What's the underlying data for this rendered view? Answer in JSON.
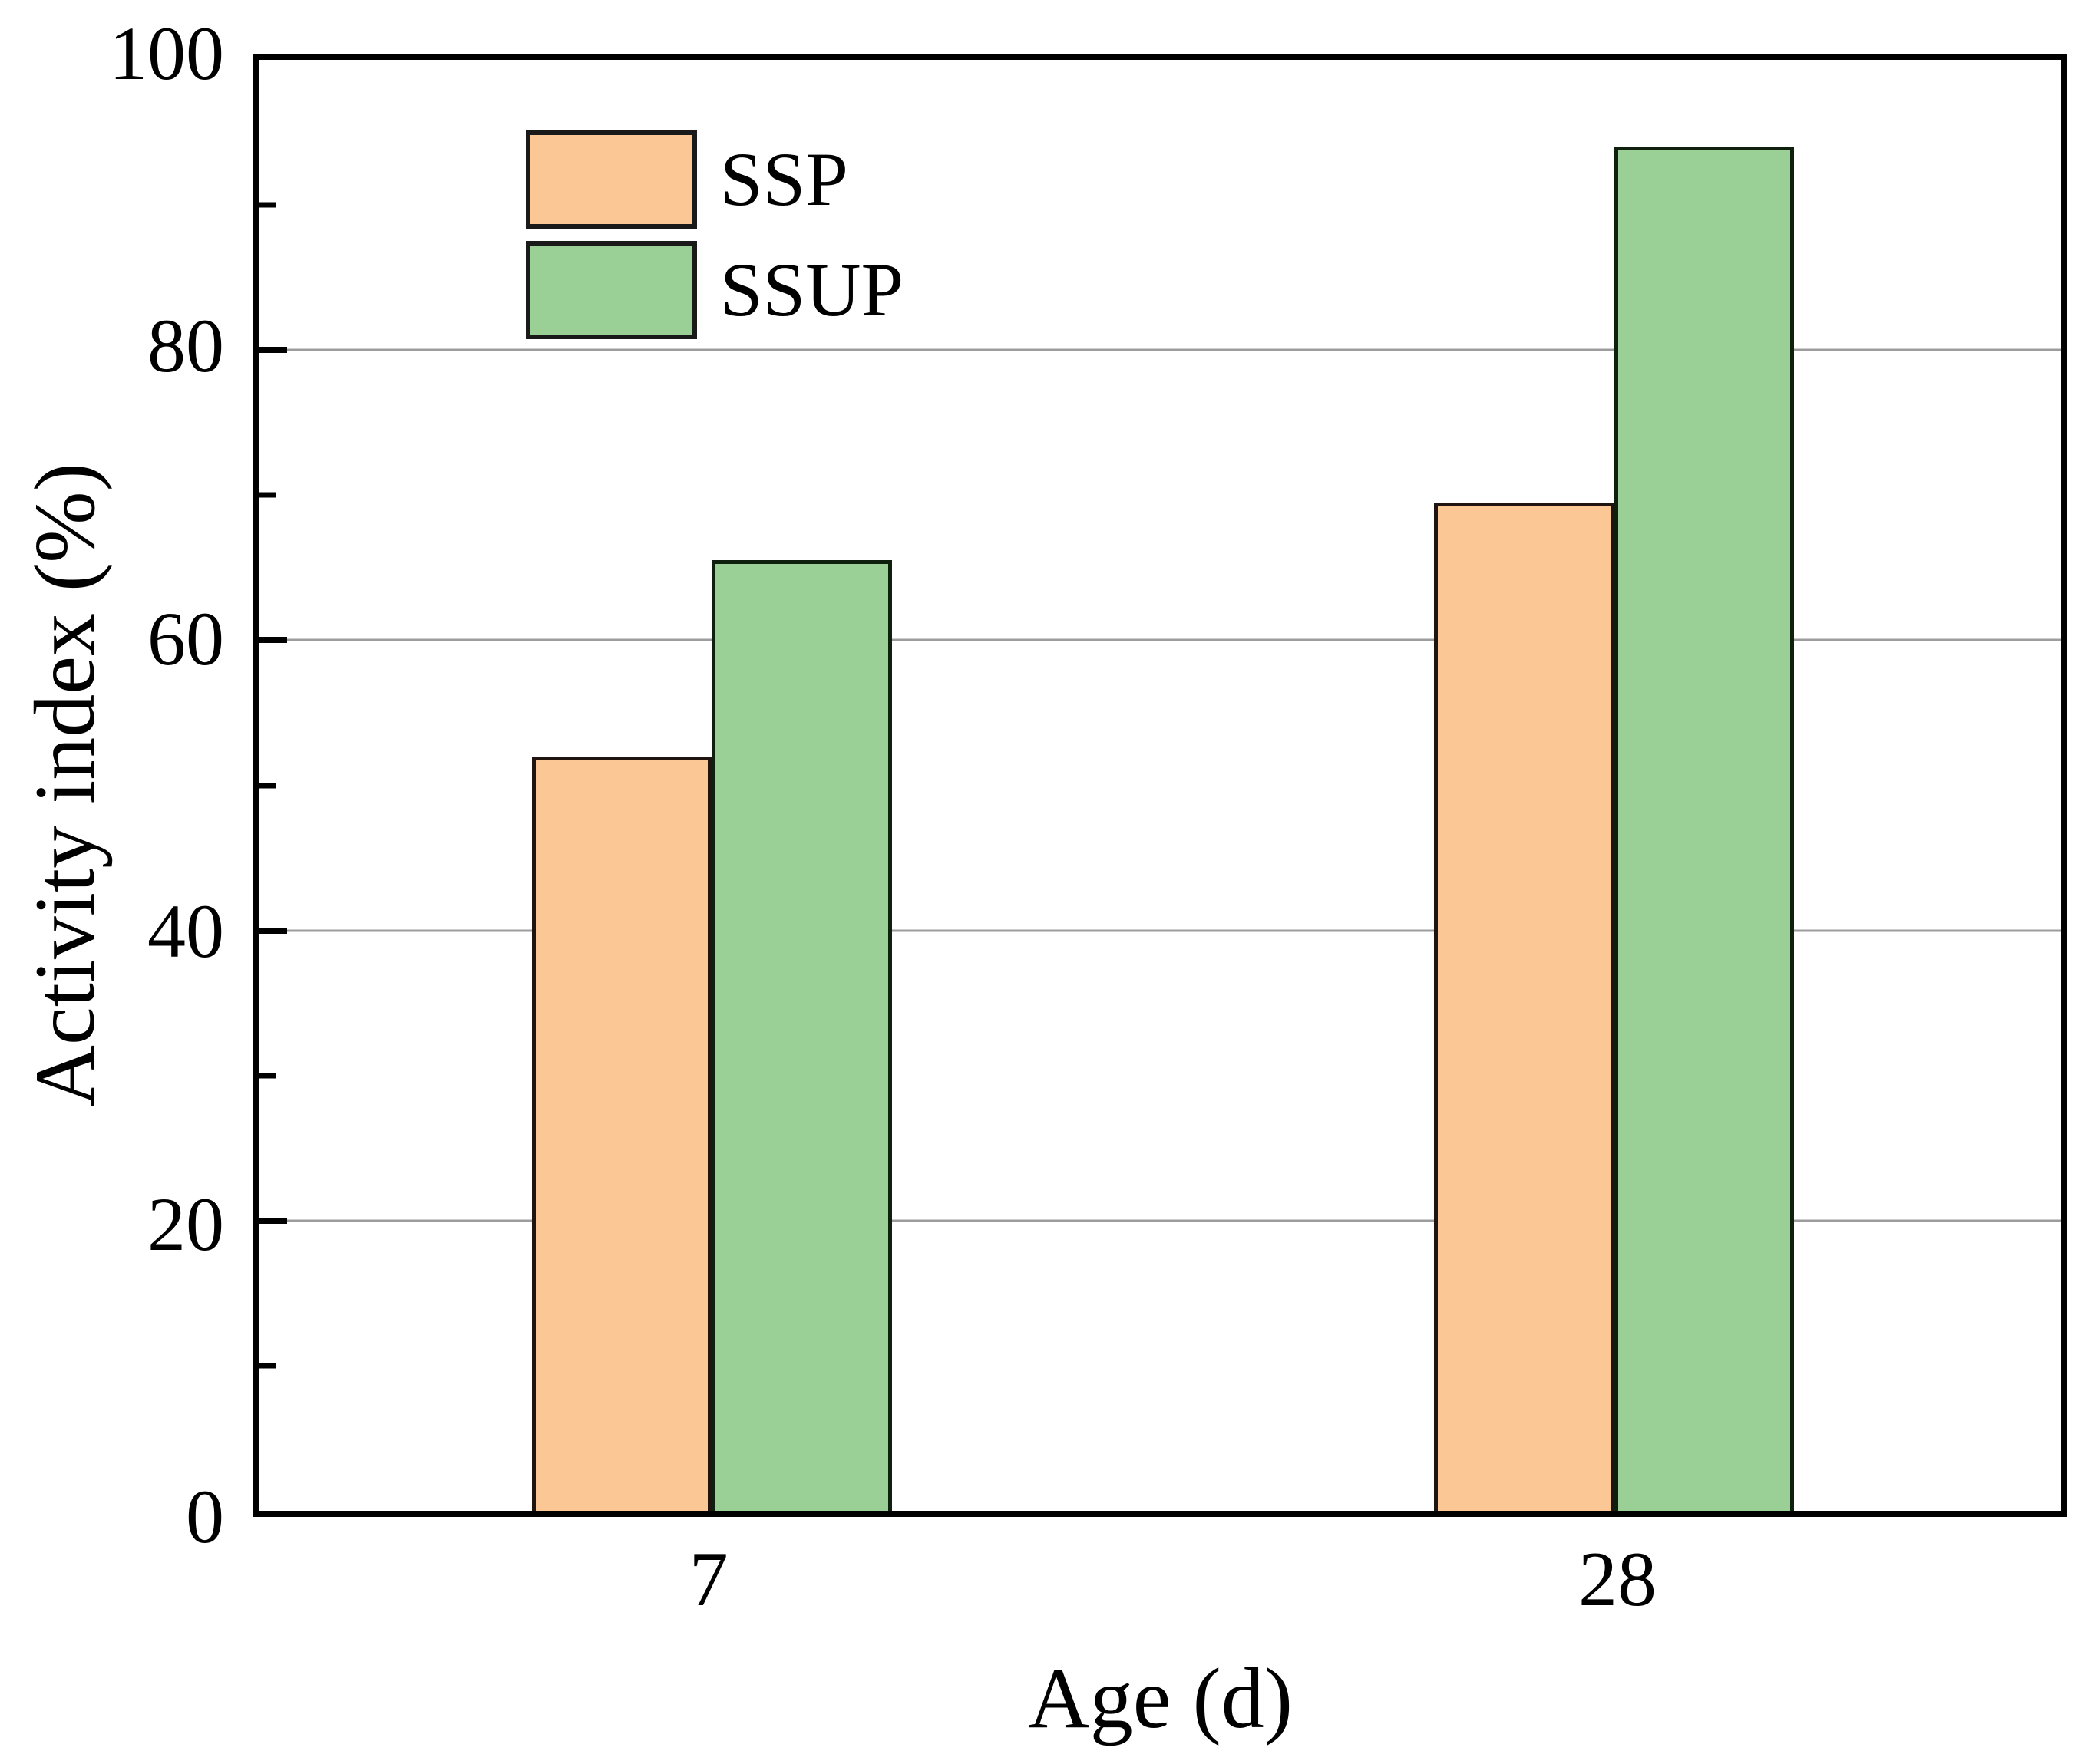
{
  "figure": {
    "background": "#ffffff"
  },
  "chart_data": {
    "type": "bar",
    "title": "",
    "xlabel": "Age (d)",
    "ylabel": "Activity index (%)",
    "categories": [
      "7",
      "28"
    ],
    "series": [
      {
        "name": "SSP",
        "color": "#FBC795",
        "border_color": "#1f1410",
        "values": [
          52,
          69.5
        ]
      },
      {
        "name": "SSUP",
        "color": "#9AD096",
        "border_color": "#10200f",
        "values": [
          65.5,
          94
        ]
      }
    ],
    "ylim": [
      0,
      100
    ],
    "yticks": [
      0,
      20,
      40,
      60,
      80,
      100
    ],
    "minor_yticks": [
      10,
      30,
      50,
      70,
      90
    ],
    "grid": "horizontal-at-major-ticks",
    "gridline_color": "#9c9c9c",
    "axis_color": "#000000",
    "legend_position": "top-left-inside",
    "layout": {
      "group_centers_frac": [
        0.251,
        0.752
      ],
      "bar_width_frac": 0.0999
    }
  }
}
